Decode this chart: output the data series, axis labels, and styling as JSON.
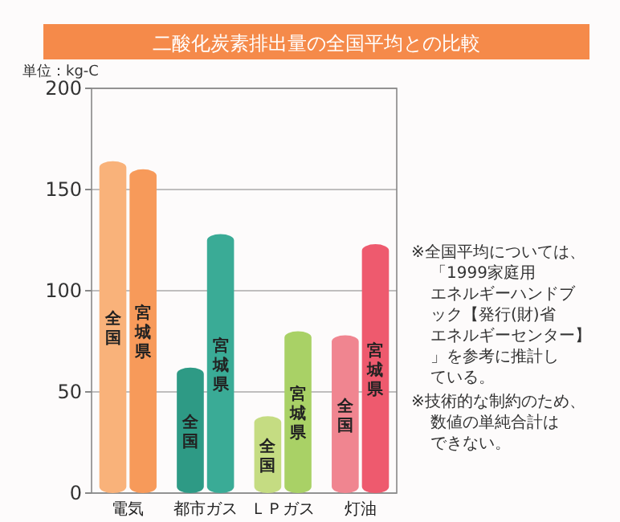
{
  "chart_data": {
    "type": "bar",
    "title": "二酸化炭素排出量の全国平均との比較",
    "ylabel": "単位：kg-C",
    "categories": [
      "電気",
      "都市ガス",
      "ＬＰガス",
      "灯油"
    ],
    "series": [
      {
        "name": "全国",
        "colors": [
          "#f9b27a",
          "#2e9a85",
          "#c5dc82",
          "#f08590"
        ],
        "values": [
          164,
          62,
          38,
          78
        ]
      },
      {
        "name": "宮城県",
        "colors": [
          "#f79a5a",
          "#3aab96",
          "#a9d166",
          "#ee5a6e"
        ],
        "values": [
          160,
          128,
          80,
          123
        ]
      }
    ],
    "ylim": [
      0,
      200
    ],
    "yticks": [
      0,
      50,
      100,
      150,
      200
    ],
    "grid": "y",
    "annotations": [
      "※全国平均については、「1999家庭用エネルギーハンドブック【発行(財)省エネルギーセンター】」を参考に推計している。",
      "※技術的な制約のため、数値の単純合計はできない。"
    ]
  }
}
